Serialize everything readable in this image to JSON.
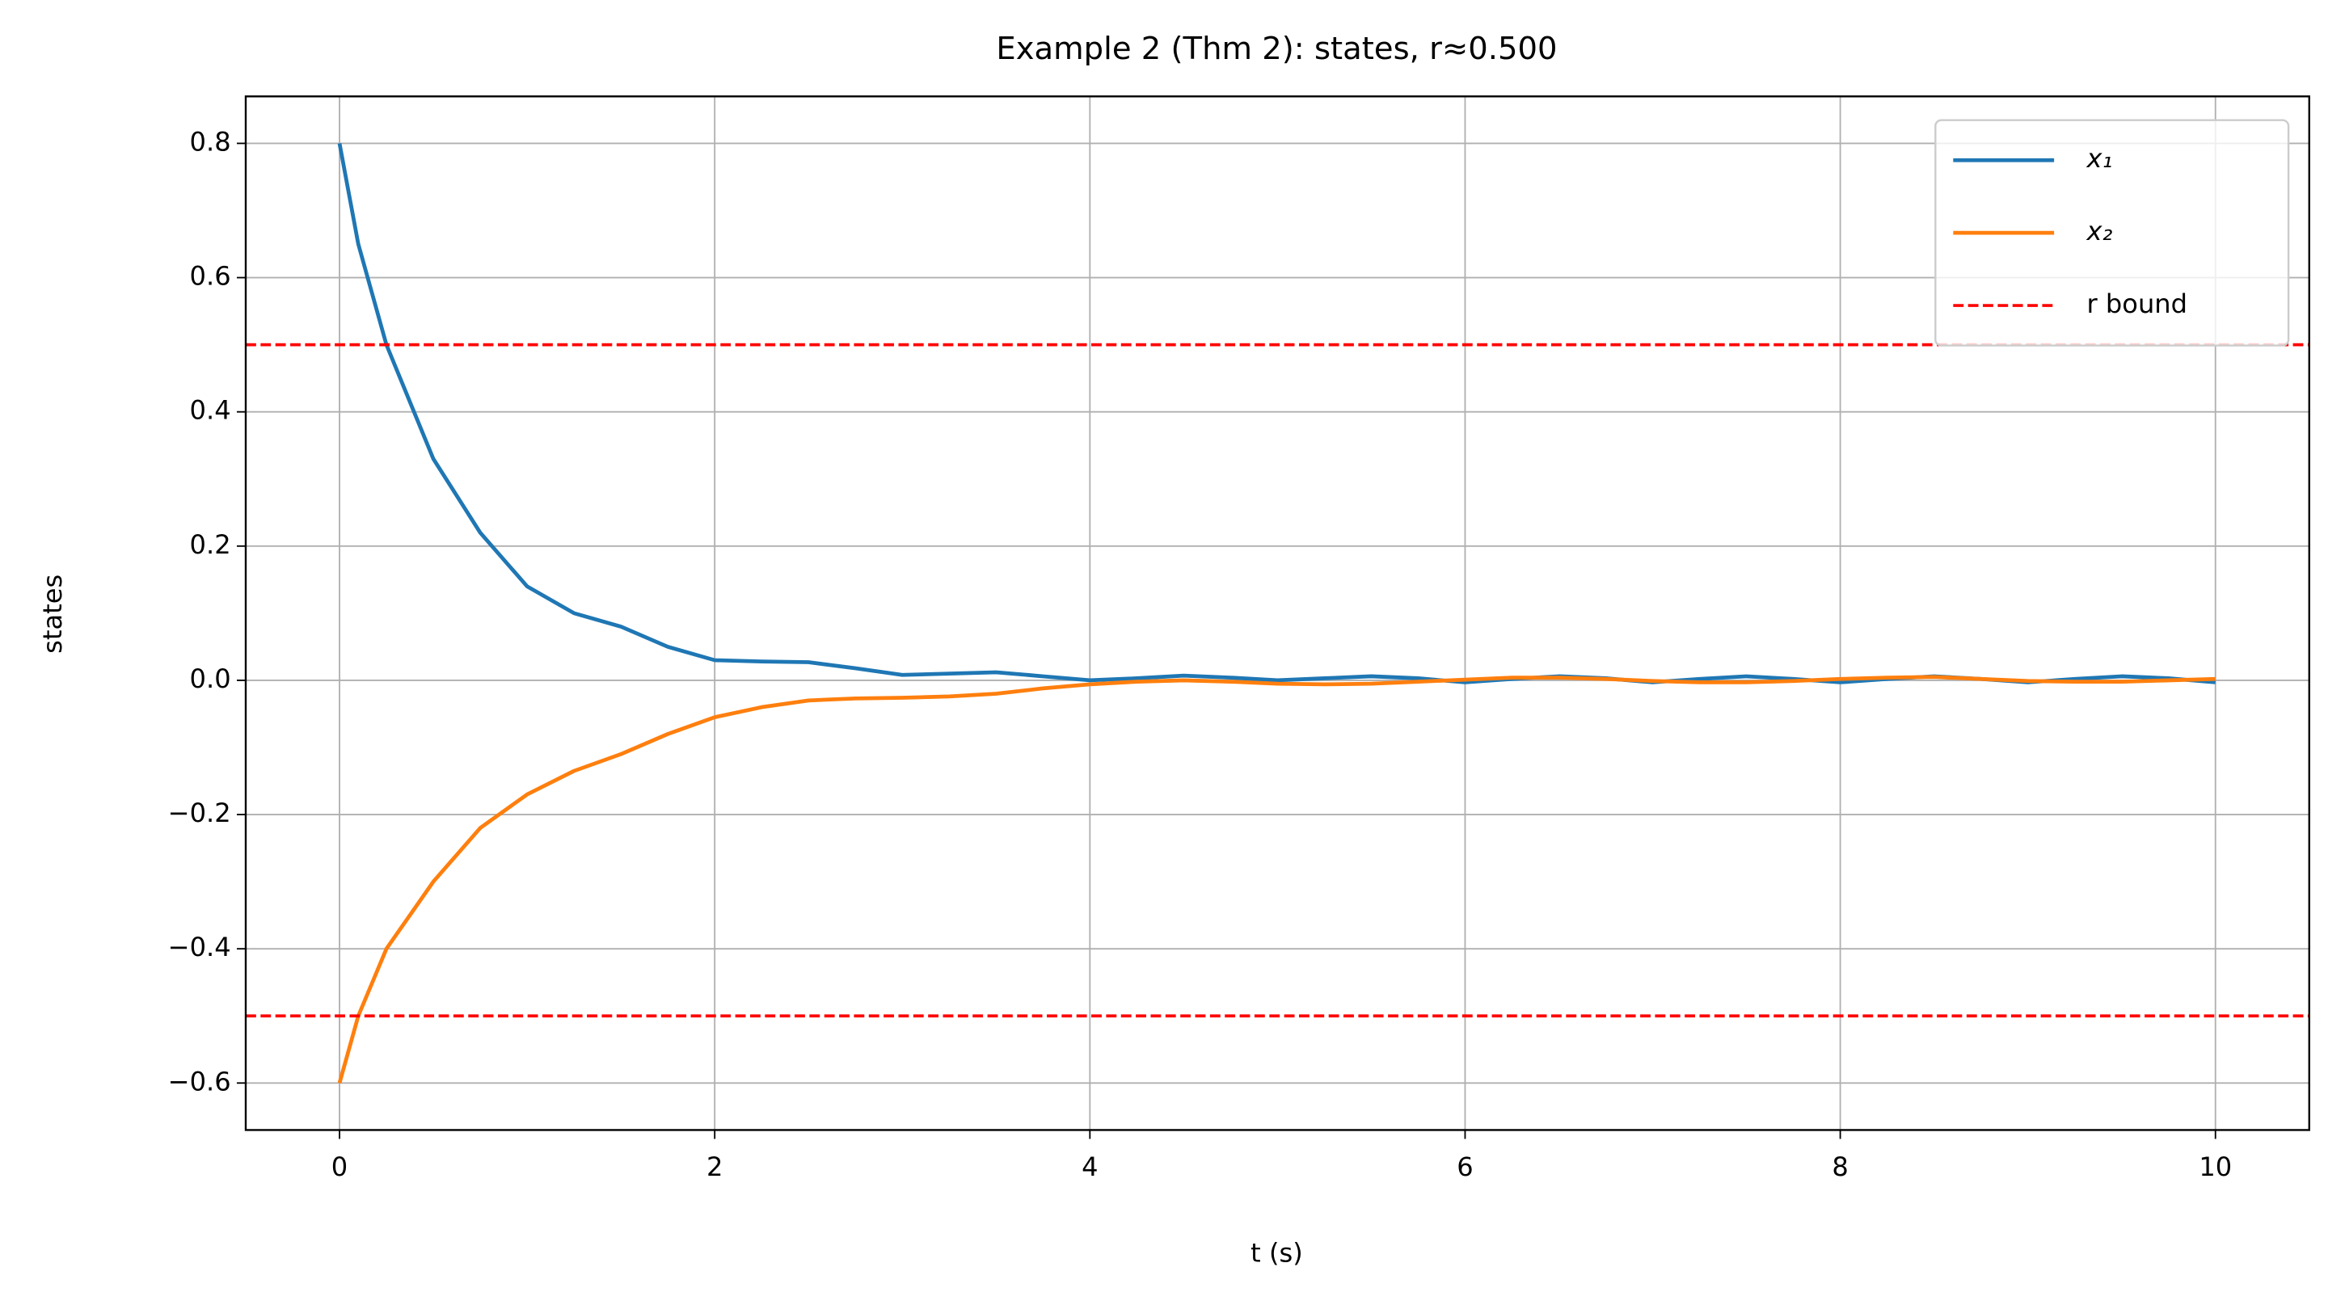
{
  "chart_data": {
    "type": "line",
    "title": "Example 2 (Thm 2): states, r≈0.500",
    "xlabel": "t (s)",
    "ylabel": "states",
    "x": [
      0,
      0.1,
      0.25,
      0.5,
      0.75,
      1.0,
      1.25,
      1.5,
      1.75,
      2.0,
      2.25,
      2.5,
      2.75,
      3.0,
      3.25,
      3.5,
      3.75,
      4.0,
      4.25,
      4.5,
      4.75,
      5.0,
      5.25,
      5.5,
      5.75,
      6.0,
      6.25,
      6.5,
      6.75,
      7.0,
      7.25,
      7.5,
      7.75,
      8.0,
      8.25,
      8.5,
      8.75,
      9.0,
      9.25,
      9.5,
      9.75,
      10.0
    ],
    "series": [
      {
        "name": "x₁",
        "color": "#1f77b4",
        "values": [
          0.8,
          0.65,
          0.5,
          0.33,
          0.22,
          0.14,
          0.1,
          0.08,
          0.05,
          0.03,
          0.028,
          0.027,
          0.018,
          0.008,
          0.01,
          0.012,
          0.006,
          0.0,
          0.003,
          0.007,
          0.004,
          0.0,
          0.003,
          0.006,
          0.003,
          -0.003,
          0.002,
          0.006,
          0.003,
          -0.003,
          0.002,
          0.006,
          0.002,
          -0.003,
          0.002,
          0.006,
          0.002,
          -0.003,
          0.002,
          0.006,
          0.003,
          -0.003
        ]
      },
      {
        "name": "x₂",
        "color": "#ff7f0e",
        "values": [
          -0.6,
          -0.5,
          -0.4,
          -0.3,
          -0.22,
          -0.17,
          -0.135,
          -0.11,
          -0.08,
          -0.055,
          -0.04,
          -0.03,
          -0.027,
          -0.026,
          -0.024,
          -0.02,
          -0.012,
          -0.006,
          -0.002,
          0.0,
          -0.002,
          -0.005,
          -0.006,
          -0.005,
          -0.002,
          0.001,
          0.004,
          0.004,
          0.002,
          -0.001,
          -0.003,
          -0.003,
          -0.001,
          0.002,
          0.004,
          0.005,
          0.002,
          -0.001,
          -0.002,
          -0.002,
          0.0,
          0.002
        ]
      }
    ],
    "hlines": {
      "name": "r bound",
      "color": "#ff0000",
      "values": [
        0.5,
        -0.5
      ]
    },
    "xlim": [
      -0.5,
      10.5
    ],
    "xticks": [
      0,
      2,
      4,
      6,
      8,
      10
    ],
    "ylim": [
      -0.67,
      0.87
    ],
    "yticks": [
      {
        "value": -0.6,
        "label": "−0.6"
      },
      {
        "value": -0.4,
        "label": "−0.4"
      },
      {
        "value": -0.2,
        "label": "−0.2"
      },
      {
        "value": 0,
        "label": "0.0"
      },
      0.2,
      0.4,
      0.6,
      0.8
    ],
    "grid": true,
    "legend": "upper right"
  }
}
